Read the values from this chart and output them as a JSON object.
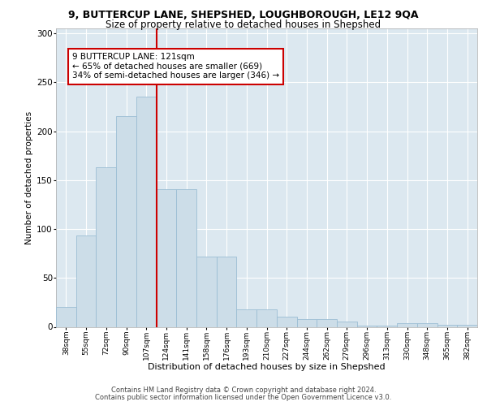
{
  "title_line1": "9, BUTTERCUP LANE, SHEPSHED, LOUGHBOROUGH, LE12 9QA",
  "title_line2": "Size of property relative to detached houses in Shepshed",
  "xlabel": "Distribution of detached houses by size in Shepshed",
  "ylabel": "Number of detached properties",
  "categories": [
    "38sqm",
    "55sqm",
    "72sqm",
    "90sqm",
    "107sqm",
    "124sqm",
    "141sqm",
    "158sqm",
    "176sqm",
    "193sqm",
    "210sqm",
    "227sqm",
    "244sqm",
    "262sqm",
    "279sqm",
    "296sqm",
    "313sqm",
    "330sqm",
    "348sqm",
    "365sqm",
    "382sqm"
  ],
  "values": [
    20,
    93,
    163,
    215,
    235,
    141,
    141,
    72,
    72,
    18,
    18,
    10,
    8,
    8,
    5,
    1,
    1,
    4,
    4,
    2,
    2
  ],
  "bar_color": "#ccdde8",
  "bar_edge_color": "#9bbdd4",
  "vline_color": "#cc0000",
  "vline_x_index": 4.5,
  "annotation_text": "9 BUTTERCUP LANE: 121sqm\n← 65% of detached houses are smaller (669)\n34% of semi-detached houses are larger (346) →",
  "annotation_box_facecolor": "#ffffff",
  "annotation_box_edgecolor": "#cc0000",
  "ylim": [
    0,
    305
  ],
  "yticks": [
    0,
    50,
    100,
    150,
    200,
    250,
    300
  ],
  "footer_line1": "Contains HM Land Registry data © Crown copyright and database right 2024.",
  "footer_line2": "Contains public sector information licensed under the Open Government Licence v3.0.",
  "plot_bg_color": "#dce8f0",
  "fig_bg_color": "#ffffff",
  "grid_color": "#ffffff",
  "title_fontsize": 9,
  "subtitle_fontsize": 8.5,
  "xlabel_fontsize": 8,
  "ylabel_fontsize": 7.5,
  "xtick_fontsize": 6.5,
  "ytick_fontsize": 7.5,
  "footer_fontsize": 6,
  "annotation_fontsize": 7.5
}
